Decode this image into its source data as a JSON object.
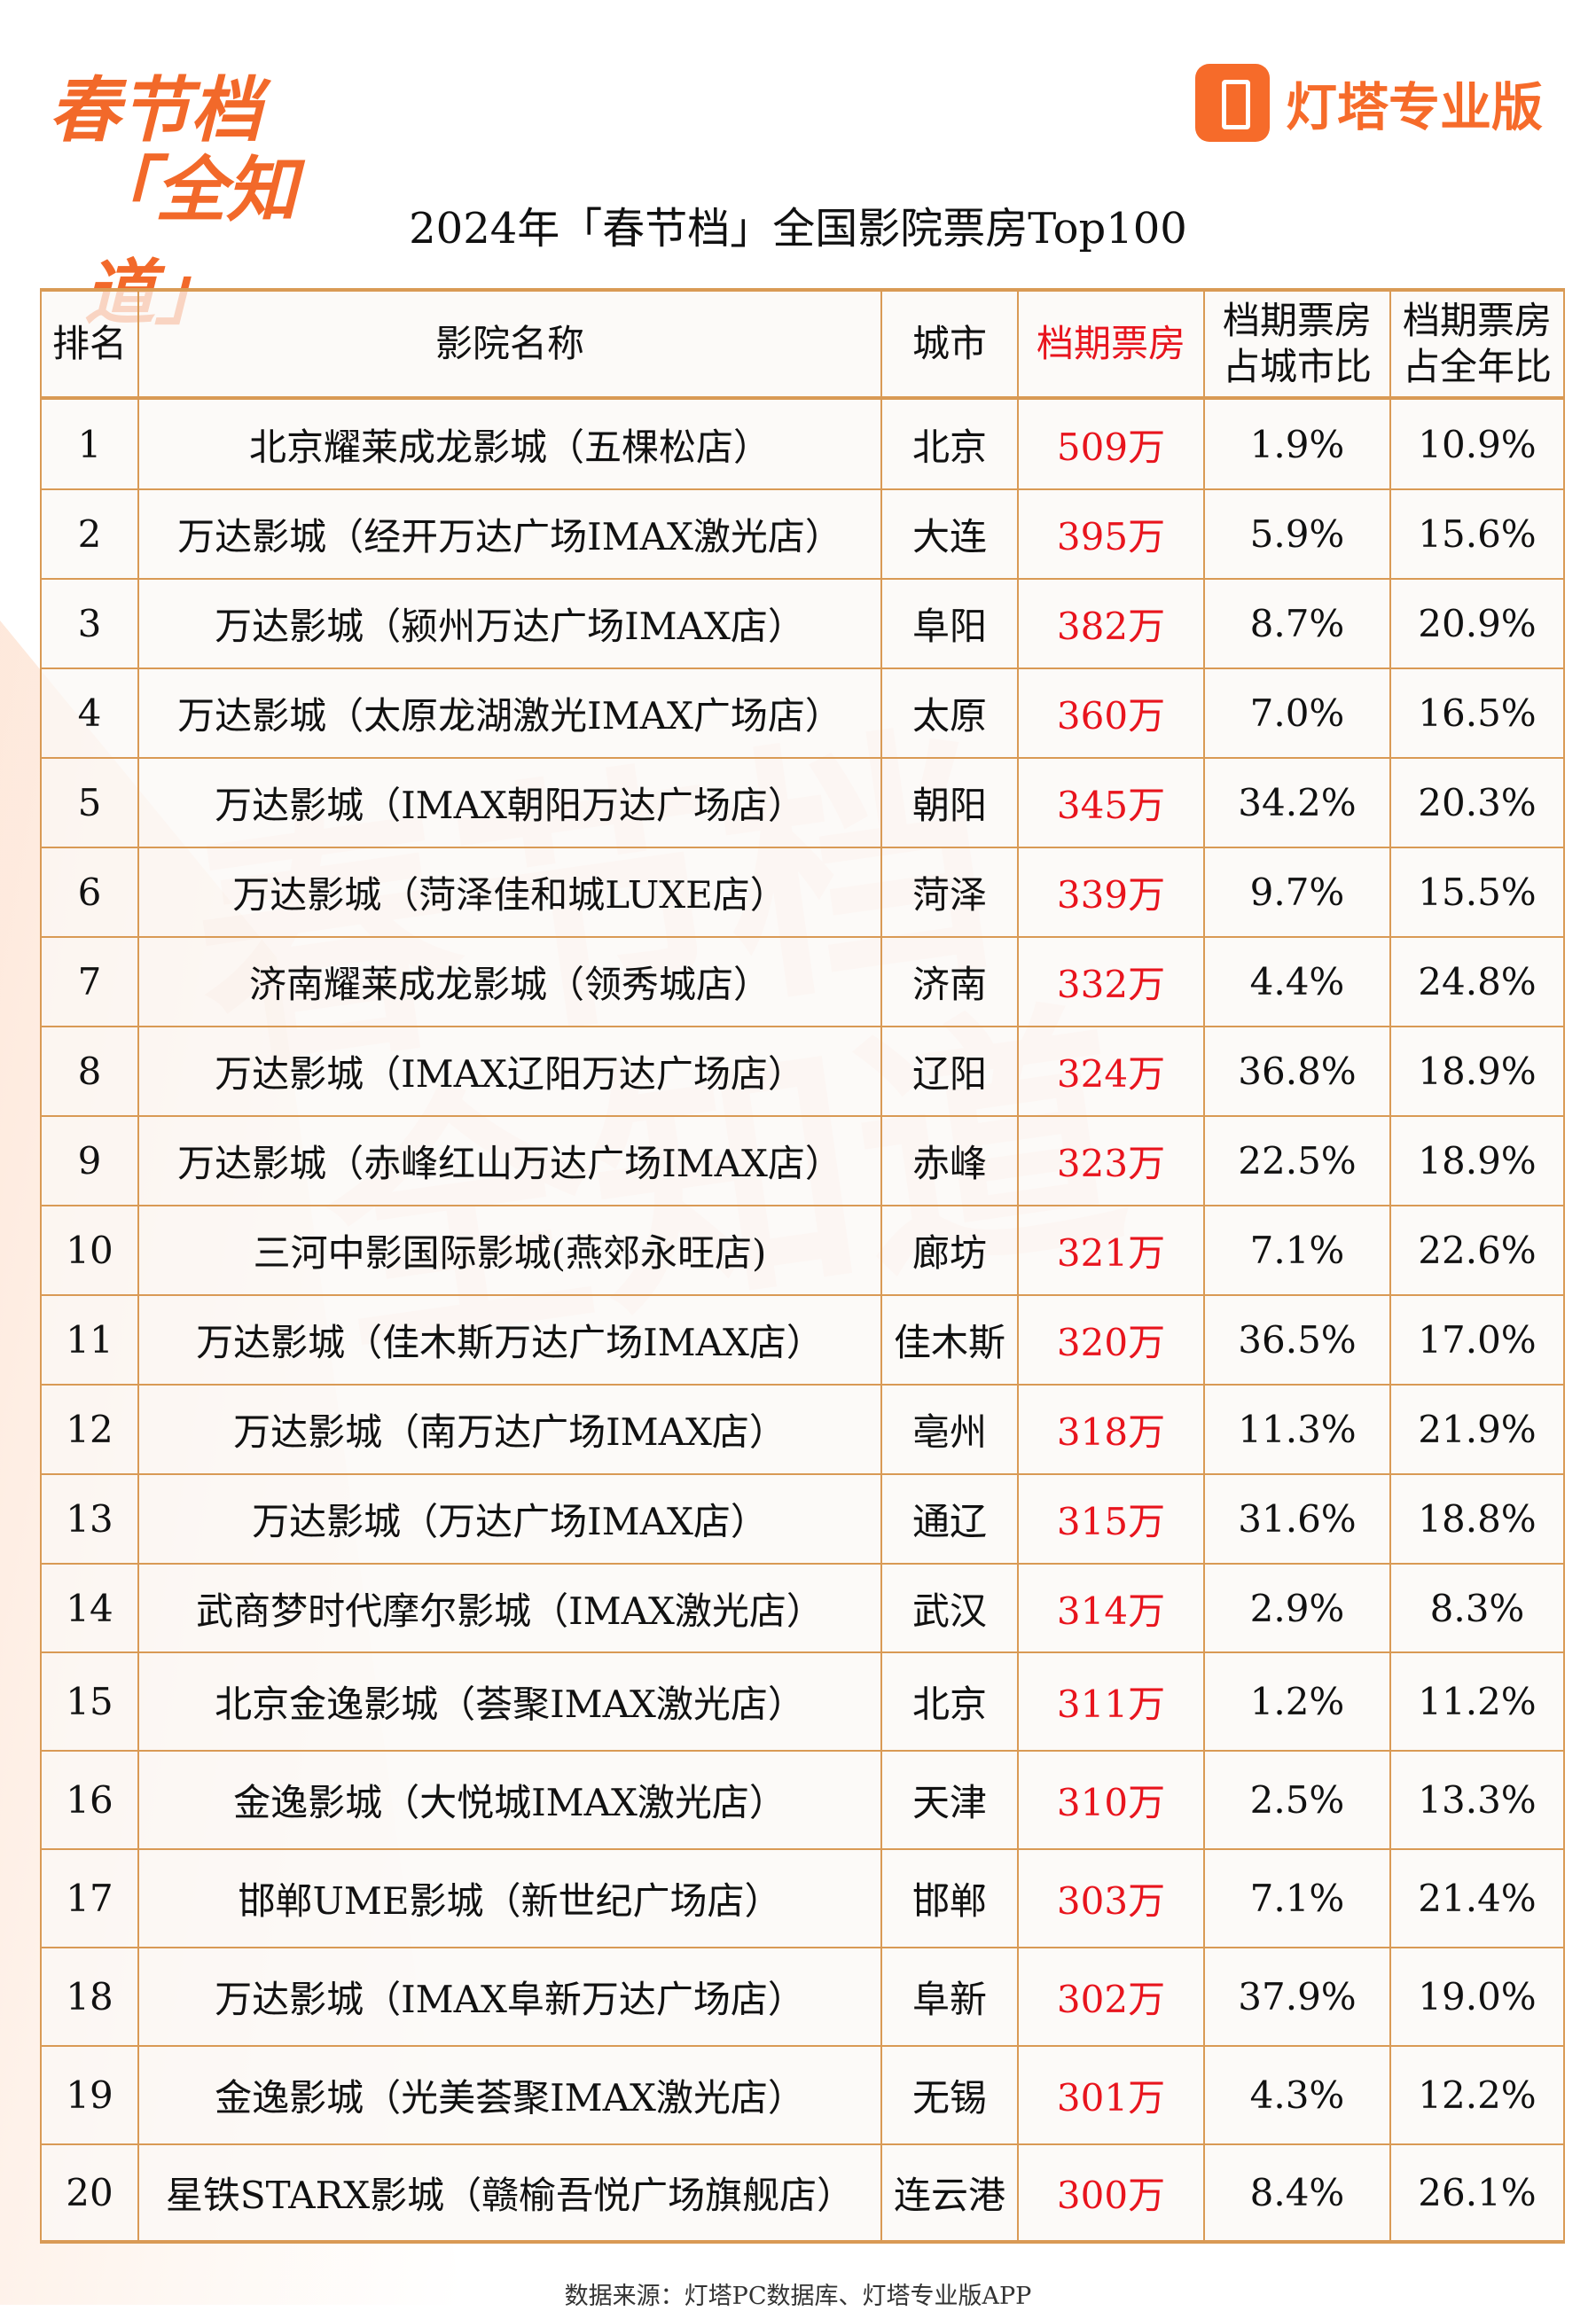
{
  "brand": {
    "left_logo": "春节档「全知道」",
    "right_logo": "灯塔专业版"
  },
  "title": "2024年「春节档」全国影院票房Top100",
  "headers": {
    "rank": "排名",
    "name": "影院名称",
    "city": "城市",
    "box": "档期票房",
    "city_ratio": "档期票房占城市比",
    "year_ratio": "档期票房占全年比"
  },
  "accent": "#e8141d",
  "rows": [
    [
      "1",
      "北京耀莱成龙影城（五棵松店）",
      "北京",
      "509万",
      "1.9%",
      "10.9%"
    ],
    [
      "2",
      "万达影城（经开万达广场IMAX激光店）",
      "大连",
      "395万",
      "5.9%",
      "15.6%"
    ],
    [
      "3",
      "万达影城（颍州万达广场IMAX店）",
      "阜阳",
      "382万",
      "8.7%",
      "20.9%"
    ],
    [
      "4",
      "万达影城（太原龙湖激光IMAX广场店）",
      "太原",
      "360万",
      "7.0%",
      "16.5%"
    ],
    [
      "5",
      "万达影城（IMAX朝阳万达广场店）",
      "朝阳",
      "345万",
      "34.2%",
      "20.3%"
    ],
    [
      "6",
      "万达影城（菏泽佳和城LUXE店）",
      "菏泽",
      "339万",
      "9.7%",
      "15.5%"
    ],
    [
      "7",
      "济南耀莱成龙影城（领秀城店）",
      "济南",
      "332万",
      "4.4%",
      "24.8%"
    ],
    [
      "8",
      "万达影城（IMAX辽阳万达广场店）",
      "辽阳",
      "324万",
      "36.8%",
      "18.9%"
    ],
    [
      "9",
      "万达影城（赤峰红山万达广场IMAX店）",
      "赤峰",
      "323万",
      "22.5%",
      "18.9%"
    ],
    [
      "10",
      "三河中影国际影城(燕郊永旺店)",
      "廊坊",
      "321万",
      "7.1%",
      "22.6%"
    ],
    [
      "11",
      "万达影城（佳木斯万达广场IMAX店）",
      "佳木斯",
      "320万",
      "36.5%",
      "17.0%"
    ],
    [
      "12",
      "万达影城（南万达广场IMAX店）",
      "亳州",
      "318万",
      "11.3%",
      "21.9%"
    ],
    [
      "13",
      "万达影城（万达广场IMAX店）",
      "通辽",
      "315万",
      "31.6%",
      "18.8%"
    ],
    [
      "14",
      "武商梦时代摩尔影城（IMAX激光店）",
      "武汉",
      "314万",
      "2.9%",
      "8.3%"
    ],
    [
      "15",
      "北京金逸影城（荟聚IMAX激光店）",
      "北京",
      "311万",
      "1.2%",
      "11.2%"
    ],
    [
      "16",
      "金逸影城（大悦城IMAX激光店）",
      "天津",
      "310万",
      "2.5%",
      "13.3%"
    ],
    [
      "17",
      "邯郸UME影城（新世纪广场店）",
      "邯郸",
      "303万",
      "7.1%",
      "21.4%"
    ],
    [
      "18",
      "万达影城（IMAX阜新万达广场店）",
      "阜新",
      "302万",
      "37.9%",
      "19.0%"
    ],
    [
      "19",
      "金逸影城（光美荟聚IMAX激光店）",
      "无锡",
      "301万",
      "4.3%",
      "12.2%"
    ],
    [
      "20",
      "星铁STARX影城（赣榆吾悦广场旗舰店）",
      "连云港",
      "300万",
      "8.4%",
      "26.1%"
    ]
  ],
  "source": "数据来源：灯塔PC数据库、灯塔专业版APP"
}
